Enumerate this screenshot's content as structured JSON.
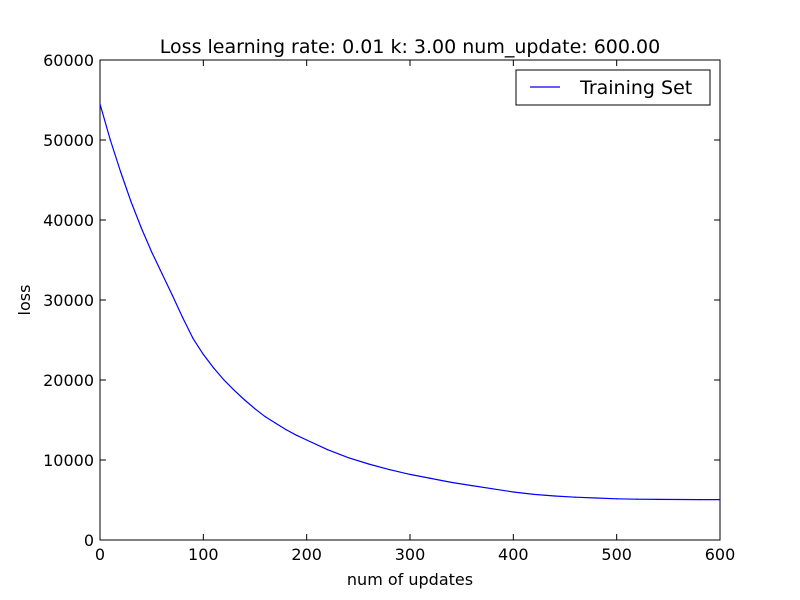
{
  "chart_data": {
    "type": "line",
    "title": "Loss learning rate: 0.01 k: 3.00 num_update: 600.00",
    "xlabel": "num of updates",
    "ylabel": "loss",
    "xlim": [
      0,
      600
    ],
    "ylim": [
      0,
      60000
    ],
    "xticks": [
      0,
      100,
      200,
      300,
      400,
      500,
      600
    ],
    "yticks": [
      0,
      10000,
      20000,
      30000,
      40000,
      50000,
      60000
    ],
    "grid": false,
    "legend_position": "top-right",
    "series": [
      {
        "name": "Training Set",
        "color": "#0000ff",
        "x": [
          0,
          10,
          20,
          30,
          40,
          50,
          60,
          70,
          80,
          90,
          100,
          110,
          120,
          130,
          140,
          150,
          160,
          170,
          180,
          190,
          200,
          220,
          240,
          260,
          280,
          300,
          320,
          340,
          360,
          380,
          400,
          420,
          440,
          460,
          480,
          500,
          520,
          540,
          560,
          580,
          600
        ],
        "y": [
          54500,
          50000,
          46000,
          42300,
          39000,
          36000,
          33300,
          30600,
          27800,
          25200,
          23200,
          21500,
          20000,
          18700,
          17500,
          16400,
          15400,
          14600,
          13800,
          13100,
          12500,
          11300,
          10300,
          9500,
          8800,
          8200,
          7700,
          7200,
          6800,
          6400,
          6000,
          5700,
          5500,
          5350,
          5250,
          5150,
          5100,
          5080,
          5060,
          5050,
          5050
        ]
      }
    ]
  }
}
